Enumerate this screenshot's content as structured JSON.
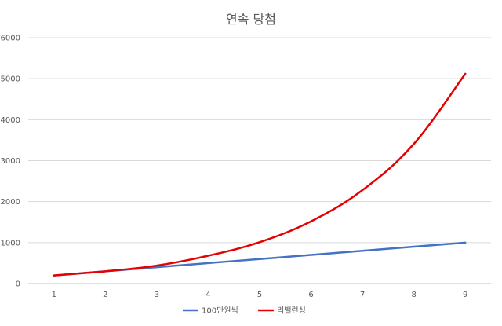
{
  "chart_data": {
    "type": "line",
    "title": "연속 당첨",
    "xlabel": "",
    "ylabel": "",
    "x": [
      1,
      2,
      3,
      4,
      5,
      6,
      7,
      8,
      9
    ],
    "xticks": [
      "1",
      "2",
      "3",
      "4",
      "5",
      "6",
      "7",
      "8",
      "9"
    ],
    "ylim": [
      0,
      6000
    ],
    "yticks": [
      "0",
      "1000",
      "2000",
      "3000",
      "4000",
      "5000",
      "6000"
    ],
    "ytick_values": [
      0,
      1000,
      2000,
      3000,
      4000,
      5000,
      6000
    ],
    "grid": true,
    "legend": "bottom",
    "series": [
      {
        "name": "100만원씩",
        "color": "#4472c4",
        "values": [
          200,
          300,
          400,
          500,
          600,
          700,
          800,
          900,
          1000
        ]
      },
      {
        "name": "리밸런싱",
        "color": "#e60000",
        "values": [
          200,
          300,
          440,
          680,
          1010,
          1520,
          2280,
          3410,
          5120
        ]
      }
    ]
  }
}
